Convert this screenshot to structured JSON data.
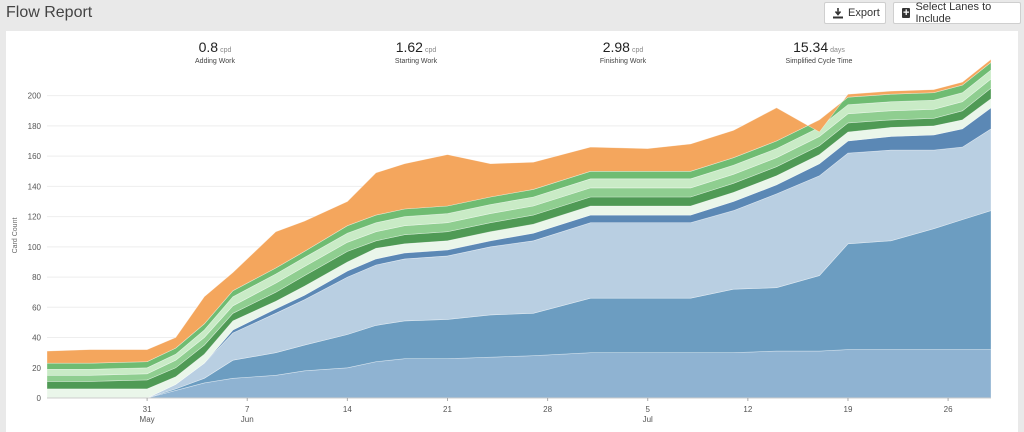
{
  "header": {
    "title": "Flow Report",
    "export_label": "Export",
    "select_label": "Select Lanes to Include",
    "export_icon": "download-icon",
    "select_icon": "plus-square-icon"
  },
  "stats": [
    {
      "value": "0.8",
      "unit": "cpd",
      "label": "Adding Work"
    },
    {
      "value": "1.62",
      "unit": "cpd",
      "label": "Starting Work"
    },
    {
      "value": "2.98",
      "unit": "cpd",
      "label": "Finishing Work"
    },
    {
      "value": "15.34",
      "unit": "days",
      "label": "Simplified Cycle Time"
    }
  ],
  "chart_data": {
    "type": "area",
    "stacked": true,
    "ylabel": "Card Count",
    "ylim": [
      0,
      215
    ],
    "yticks": [
      0,
      20,
      40,
      60,
      80,
      100,
      120,
      140,
      160,
      180,
      200
    ],
    "x": [
      "May 24",
      "May 27",
      "May 31",
      "Jun 2",
      "Jun 4",
      "Jun 6",
      "Jun 9",
      "Jun 11",
      "Jun 14",
      "Jun 16",
      "Jun 18",
      "Jun 21",
      "Jun 24",
      "Jun 27",
      "Jul 1",
      "Jul 5",
      "Jul 8",
      "Jul 11",
      "Jul 14",
      "Jul 17",
      "Jul 19",
      "Jul 22",
      "Jul 25",
      "Jul 27",
      "Jul 29"
    ],
    "xticks": [
      {
        "label": "31",
        "month": "May",
        "x": "May 31"
      },
      {
        "label": "7",
        "month": "Jun",
        "x": "Jun 7"
      },
      {
        "label": "14",
        "month": "",
        "x": "Jun 14"
      },
      {
        "label": "21",
        "month": "",
        "x": "Jun 21"
      },
      {
        "label": "28",
        "month": "",
        "x": "Jun 28"
      },
      {
        "label": "5",
        "month": "Jul",
        "x": "Jul 5"
      },
      {
        "label": "12",
        "month": "",
        "x": "Jul 12"
      },
      {
        "label": "19",
        "month": "",
        "x": "Jul 19"
      },
      {
        "label": "26",
        "month": "",
        "x": "Jul 26"
      }
    ],
    "series": [
      {
        "color": "#8fb3d2",
        "values": [
          0,
          0,
          0,
          5,
          10,
          13,
          15,
          18,
          20,
          24,
          26,
          26,
          27,
          28,
          30,
          30,
          30,
          30,
          31,
          31,
          32,
          32,
          32,
          32,
          32
        ]
      },
      {
        "color": "#6c9dc1",
        "values": [
          0,
          0,
          0,
          1,
          3,
          12,
          15,
          17,
          22,
          24,
          25,
          26,
          28,
          28,
          36,
          36,
          36,
          42,
          42,
          50,
          70,
          72,
          80,
          86,
          92
        ]
      },
      {
        "color": "#b9cfe2",
        "values": [
          0,
          0,
          0,
          3,
          10,
          18,
          26,
          30,
          38,
          40,
          41,
          42,
          45,
          48,
          50,
          50,
          50,
          52,
          62,
          66,
          60,
          60,
          52,
          48,
          54
        ]
      },
      {
        "color": "#5b88b5",
        "values": [
          0,
          0,
          0,
          0,
          0,
          2,
          3,
          3,
          4,
          4,
          4,
          4,
          4,
          5,
          5,
          5,
          5,
          6,
          6,
          8,
          8,
          9,
          10,
          12,
          14
        ]
      },
      {
        "color": "#eaf6ea",
        "values": [
          6,
          6,
          6,
          5,
          6,
          6,
          5,
          6,
          6,
          7,
          6,
          6,
          6,
          6,
          6,
          6,
          6,
          6,
          6,
          6,
          6,
          6,
          6,
          6,
          6
        ]
      },
      {
        "color": "#4f9a55",
        "values": [
          5,
          5,
          6,
          6,
          6,
          5,
          6,
          7,
          7,
          5,
          6,
          6,
          6,
          6,
          6,
          6,
          6,
          6,
          6,
          6,
          6,
          5,
          5,
          6,
          7
        ]
      },
      {
        "color": "#8fce90",
        "values": [
          4,
          4,
          4,
          5,
          5,
          5,
          6,
          6,
          6,
          6,
          6,
          6,
          6,
          6,
          6,
          6,
          6,
          6,
          6,
          6,
          6,
          6,
          6,
          6,
          6
        ]
      },
      {
        "color": "#c9ebc6",
        "values": [
          4,
          4,
          4,
          4,
          5,
          6,
          6,
          6,
          6,
          6,
          6,
          6,
          6,
          6,
          6,
          6,
          6,
          6,
          6,
          6,
          6,
          6,
          6,
          6,
          6
        ]
      },
      {
        "color": "#6fbc72",
        "values": [
          4,
          4,
          4,
          4,
          4,
          4,
          4,
          4,
          5,
          5,
          5,
          5,
          5,
          5,
          5,
          5,
          5,
          5,
          5,
          5,
          5,
          5,
          5,
          5,
          5
        ]
      },
      {
        "color": "#f4a65d",
        "values": [
          8,
          9,
          8,
          7,
          18,
          12,
          24,
          20,
          16,
          28,
          30,
          34,
          22,
          18,
          16,
          15,
          18,
          18,
          22,
          -8,
          2,
          2,
          2,
          2,
          2
        ]
      }
    ]
  }
}
